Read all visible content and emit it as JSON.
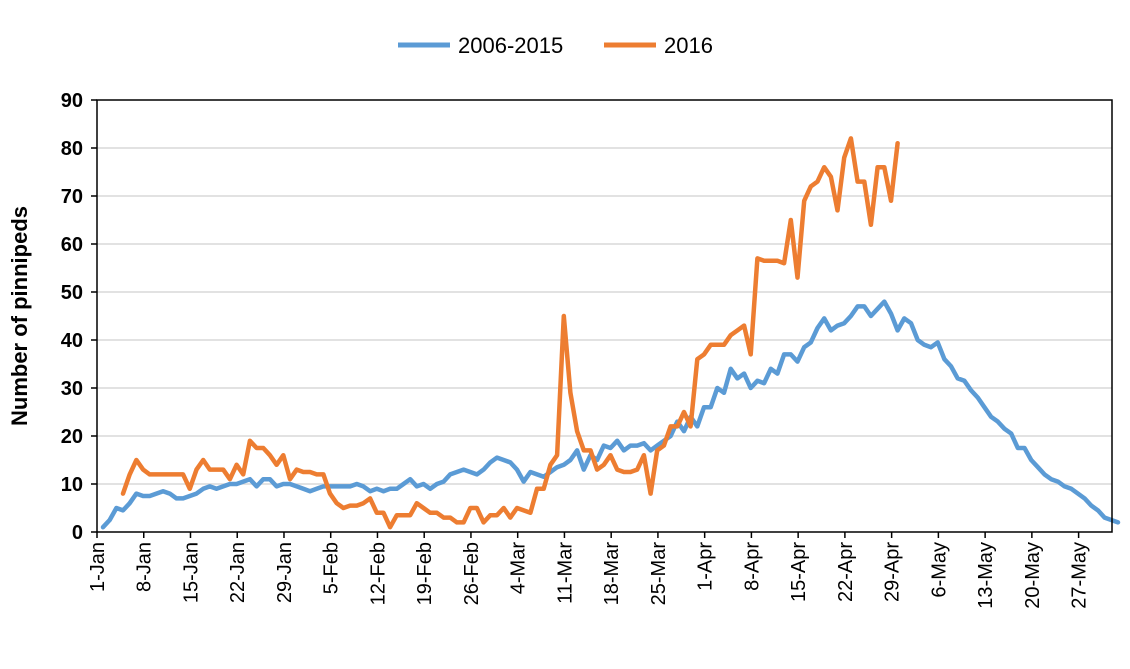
{
  "chart_data": {
    "type": "line",
    "title": "",
    "xlabel": "",
    "ylabel": "Number of pinnipeds",
    "ylim": [
      0,
      90
    ],
    "yticks": [
      0,
      10,
      20,
      30,
      40,
      50,
      60,
      70,
      80,
      90
    ],
    "x_range_days": [
      1,
      152
    ],
    "x_ticks": [
      {
        "day": 1,
        "label": "1-Jan"
      },
      {
        "day": 8,
        "label": "8-Jan"
      },
      {
        "day": 15,
        "label": "15-Jan"
      },
      {
        "day": 22,
        "label": "22-Jan"
      },
      {
        "day": 29,
        "label": "29-Jan"
      },
      {
        "day": 36,
        "label": "5-Feb"
      },
      {
        "day": 43,
        "label": "12-Feb"
      },
      {
        "day": 50,
        "label": "19-Feb"
      },
      {
        "day": 57,
        "label": "26-Feb"
      },
      {
        "day": 64,
        "label": "4-Mar"
      },
      {
        "day": 71,
        "label": "11-Mar"
      },
      {
        "day": 78,
        "label": "18-Mar"
      },
      {
        "day": 85,
        "label": "25-Mar"
      },
      {
        "day": 92,
        "label": "1-Apr"
      },
      {
        "day": 99,
        "label": "8-Apr"
      },
      {
        "day": 106,
        "label": "15-Apr"
      },
      {
        "day": 113,
        "label": "22-Apr"
      },
      {
        "day": 120,
        "label": "29-Apr"
      },
      {
        "day": 127,
        "label": "6-May"
      },
      {
        "day": 134,
        "label": "13-May"
      },
      {
        "day": 141,
        "label": "20-May"
      },
      {
        "day": 148,
        "label": "27-May"
      }
    ],
    "grid": "horizontal",
    "legend": "top-center",
    "series": [
      {
        "name": "2006-2015",
        "color": "#5B9BD5",
        "points": [
          [
            1,
            1
          ],
          [
            2,
            2.5
          ],
          [
            3,
            5
          ],
          [
            4,
            4.5
          ],
          [
            5,
            6
          ],
          [
            6,
            8
          ],
          [
            7,
            7.5
          ],
          [
            8,
            7.5
          ],
          [
            9,
            8
          ],
          [
            10,
            8.5
          ],
          [
            11,
            8
          ],
          [
            12,
            7
          ],
          [
            13,
            7
          ],
          [
            14,
            7.5
          ],
          [
            15,
            8
          ],
          [
            16,
            9
          ],
          [
            17,
            9.5
          ],
          [
            18,
            9
          ],
          [
            19,
            9.5
          ],
          [
            20,
            10
          ],
          [
            21,
            10
          ],
          [
            22,
            10.5
          ],
          [
            23,
            11
          ],
          [
            24,
            9.5
          ],
          [
            25,
            11
          ],
          [
            26,
            11
          ],
          [
            27,
            9.5
          ],
          [
            28,
            10
          ],
          [
            29,
            10
          ],
          [
            30,
            9.5
          ],
          [
            31,
            9
          ],
          [
            32,
            8.5
          ],
          [
            33,
            9
          ],
          [
            34,
            9.5
          ],
          [
            35,
            9.5
          ],
          [
            36,
            9.5
          ],
          [
            37,
            9.5
          ],
          [
            38,
            9.5
          ],
          [
            39,
            10
          ],
          [
            40,
            9.5
          ],
          [
            41,
            8.5
          ],
          [
            42,
            9
          ],
          [
            43,
            8.5
          ],
          [
            44,
            9
          ],
          [
            45,
            9
          ],
          [
            46,
            10
          ],
          [
            47,
            11
          ],
          [
            48,
            9.5
          ],
          [
            49,
            10
          ],
          [
            50,
            9
          ],
          [
            51,
            10
          ],
          [
            52,
            10.5
          ],
          [
            53,
            12
          ],
          [
            54,
            12.5
          ],
          [
            55,
            13
          ],
          [
            56,
            12.5
          ],
          [
            57,
            12
          ],
          [
            58,
            13
          ],
          [
            59,
            14.5
          ],
          [
            60,
            15.5
          ],
          [
            61,
            15
          ],
          [
            62,
            14.5
          ],
          [
            63,
            13
          ],
          [
            64,
            10.5
          ],
          [
            65,
            12.5
          ],
          [
            66,
            12
          ],
          [
            67,
            11.5
          ],
          [
            68,
            12.5
          ],
          [
            69,
            13.5
          ],
          [
            70,
            14
          ],
          [
            71,
            15
          ],
          [
            72,
            17
          ],
          [
            73,
            13
          ],
          [
            74,
            16
          ],
          [
            75,
            15
          ],
          [
            76,
            18
          ],
          [
            77,
            17.5
          ],
          [
            78,
            19
          ],
          [
            79,
            17
          ],
          [
            80,
            18
          ],
          [
            81,
            18
          ],
          [
            82,
            18.5
          ],
          [
            83,
            17
          ],
          [
            84,
            18
          ],
          [
            85,
            19
          ],
          [
            86,
            20
          ],
          [
            87,
            23
          ],
          [
            88,
            21
          ],
          [
            89,
            24
          ],
          [
            90,
            22
          ],
          [
            91,
            26
          ],
          [
            92,
            26
          ],
          [
            93,
            30
          ],
          [
            94,
            29
          ],
          [
            95,
            34
          ],
          [
            96,
            32
          ],
          [
            97,
            33
          ],
          [
            98,
            30
          ],
          [
            99,
            31.5
          ],
          [
            100,
            31
          ],
          [
            101,
            34
          ],
          [
            102,
            33
          ],
          [
            103,
            37
          ],
          [
            104,
            37
          ],
          [
            105,
            35.5
          ],
          [
            106,
            38.5
          ],
          [
            107,
            39.5
          ],
          [
            108,
            42.5
          ],
          [
            109,
            44.5
          ],
          [
            110,
            42
          ],
          [
            111,
            43
          ],
          [
            112,
            43.5
          ],
          [
            113,
            45
          ],
          [
            114,
            47
          ],
          [
            115,
            47
          ],
          [
            116,
            45
          ],
          [
            117,
            46.5
          ],
          [
            118,
            48
          ],
          [
            119,
            45.5
          ],
          [
            120,
            42
          ],
          [
            121,
            44.5
          ],
          [
            122,
            43.5
          ],
          [
            123,
            40
          ],
          [
            124,
            39
          ],
          [
            125,
            38.5
          ],
          [
            126,
            39.5
          ],
          [
            127,
            36
          ],
          [
            128,
            34.5
          ],
          [
            129,
            32
          ],
          [
            130,
            31.5
          ],
          [
            131,
            29.5
          ],
          [
            132,
            28
          ],
          [
            133,
            26
          ],
          [
            134,
            24
          ],
          [
            135,
            23
          ],
          [
            136,
            21.5
          ],
          [
            137,
            20.5
          ],
          [
            138,
            17.5
          ],
          [
            139,
            17.5
          ],
          [
            140,
            15
          ],
          [
            141,
            13.5
          ],
          [
            142,
            12
          ],
          [
            143,
            11
          ],
          [
            144,
            10.5
          ],
          [
            145,
            9.5
          ],
          [
            146,
            9
          ],
          [
            147,
            8
          ],
          [
            148,
            7
          ],
          [
            149,
            5.5
          ],
          [
            150,
            4.5
          ],
          [
            151,
            3
          ],
          [
            152,
            2.5
          ],
          [
            153,
            2
          ]
        ]
      },
      {
        "name": "2016",
        "color": "#ED7D31",
        "points": [
          [
            4,
            8
          ],
          [
            5,
            12
          ],
          [
            6,
            15
          ],
          [
            7,
            13
          ],
          [
            8,
            12
          ],
          [
            9,
            12
          ],
          [
            10,
            12
          ],
          [
            11,
            12
          ],
          [
            12,
            12
          ],
          [
            13,
            12
          ],
          [
            14,
            9
          ],
          [
            15,
            13
          ],
          [
            16,
            15
          ],
          [
            17,
            13
          ],
          [
            18,
            13
          ],
          [
            19,
            13
          ],
          [
            20,
            11
          ],
          [
            21,
            14
          ],
          [
            22,
            12
          ],
          [
            23,
            19
          ],
          [
            24,
            17.5
          ],
          [
            25,
            17.5
          ],
          [
            26,
            16
          ],
          [
            27,
            14
          ],
          [
            28,
            16
          ],
          [
            29,
            11
          ],
          [
            30,
            13
          ],
          [
            31,
            12.5
          ],
          [
            32,
            12.5
          ],
          [
            33,
            12
          ],
          [
            34,
            12
          ],
          [
            35,
            8
          ],
          [
            36,
            6
          ],
          [
            37,
            5
          ],
          [
            38,
            5.5
          ],
          [
            39,
            5.5
          ],
          [
            40,
            6
          ],
          [
            41,
            7
          ],
          [
            42,
            4
          ],
          [
            43,
            4
          ],
          [
            44,
            1
          ],
          [
            45,
            3.5
          ],
          [
            46,
            3.5
          ],
          [
            47,
            3.5
          ],
          [
            48,
            6
          ],
          [
            49,
            5
          ],
          [
            50,
            4
          ],
          [
            51,
            4
          ],
          [
            52,
            3
          ],
          [
            53,
            3
          ],
          [
            54,
            2
          ],
          [
            55,
            2
          ],
          [
            56,
            5
          ],
          [
            57,
            5
          ],
          [
            58,
            2
          ],
          [
            59,
            3.5
          ],
          [
            60,
            3.5
          ],
          [
            61,
            5
          ],
          [
            62,
            3
          ],
          [
            63,
            5
          ],
          [
            64,
            4.5
          ],
          [
            65,
            4
          ],
          [
            66,
            9
          ],
          [
            67,
            9
          ],
          [
            68,
            14
          ],
          [
            69,
            16
          ],
          [
            70,
            45
          ],
          [
            71,
            29
          ],
          [
            72,
            21
          ],
          [
            73,
            17
          ],
          [
            74,
            17
          ],
          [
            75,
            13
          ],
          [
            76,
            14
          ],
          [
            77,
            16
          ],
          [
            78,
            13
          ],
          [
            79,
            12.5
          ],
          [
            80,
            12.5
          ],
          [
            81,
            13
          ],
          [
            82,
            16
          ],
          [
            83,
            8
          ],
          [
            84,
            17
          ],
          [
            85,
            18
          ],
          [
            86,
            22
          ],
          [
            87,
            22
          ],
          [
            88,
            25
          ],
          [
            89,
            22
          ],
          [
            90,
            36
          ],
          [
            91,
            37
          ],
          [
            92,
            39
          ],
          [
            93,
            39
          ],
          [
            94,
            39
          ],
          [
            95,
            41
          ],
          [
            96,
            42
          ],
          [
            97,
            43
          ],
          [
            98,
            37
          ],
          [
            99,
            57
          ],
          [
            100,
            56.5
          ],
          [
            101,
            56.5
          ],
          [
            102,
            56.5
          ],
          [
            103,
            56
          ],
          [
            104,
            65
          ],
          [
            105,
            53
          ],
          [
            106,
            69
          ],
          [
            107,
            72
          ],
          [
            108,
            73
          ],
          [
            109,
            76
          ],
          [
            110,
            74
          ],
          [
            111,
            67
          ],
          [
            112,
            78
          ],
          [
            113,
            82
          ],
          [
            114,
            73
          ],
          [
            115,
            73
          ],
          [
            116,
            64
          ],
          [
            117,
            76
          ],
          [
            118,
            76
          ],
          [
            119,
            69
          ],
          [
            120,
            81
          ]
        ]
      }
    ]
  }
}
